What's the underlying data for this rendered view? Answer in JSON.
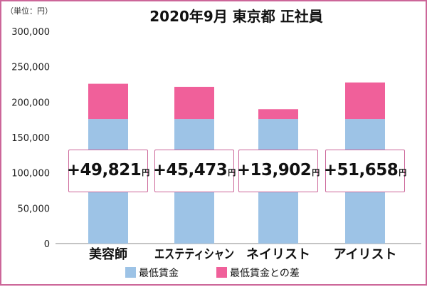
{
  "chart_data": {
    "type": "bar",
    "stacked": true,
    "title": "2020年9月 東京都 正社員",
    "unit_label": "（単位：円）",
    "categories": [
      "美容師",
      "エステティシャン",
      "ネイリスト",
      "アイリスト"
    ],
    "series": [
      {
        "name": "最低賃金",
        "color": "#9dc3e6",
        "values": [
          176080,
          176080,
          176080,
          176080
        ]
      },
      {
        "name": "最低賃金との差",
        "color": "#f0609a",
        "values": [
          49821,
          45473,
          13902,
          51658
        ]
      }
    ],
    "callouts": [
      {
        "value": "+49,821",
        "unit": "円"
      },
      {
        "value": "+45,473",
        "unit": "円"
      },
      {
        "value": "+13,902",
        "unit": "円"
      },
      {
        "value": "+51,658",
        "unit": "円"
      }
    ],
    "yticks": [
      "0",
      "50,000",
      "100,000",
      "150,000",
      "200,000",
      "250,000",
      "300,000"
    ],
    "ylim": [
      0,
      300000
    ],
    "grid": false,
    "legend_position": "bottom"
  }
}
